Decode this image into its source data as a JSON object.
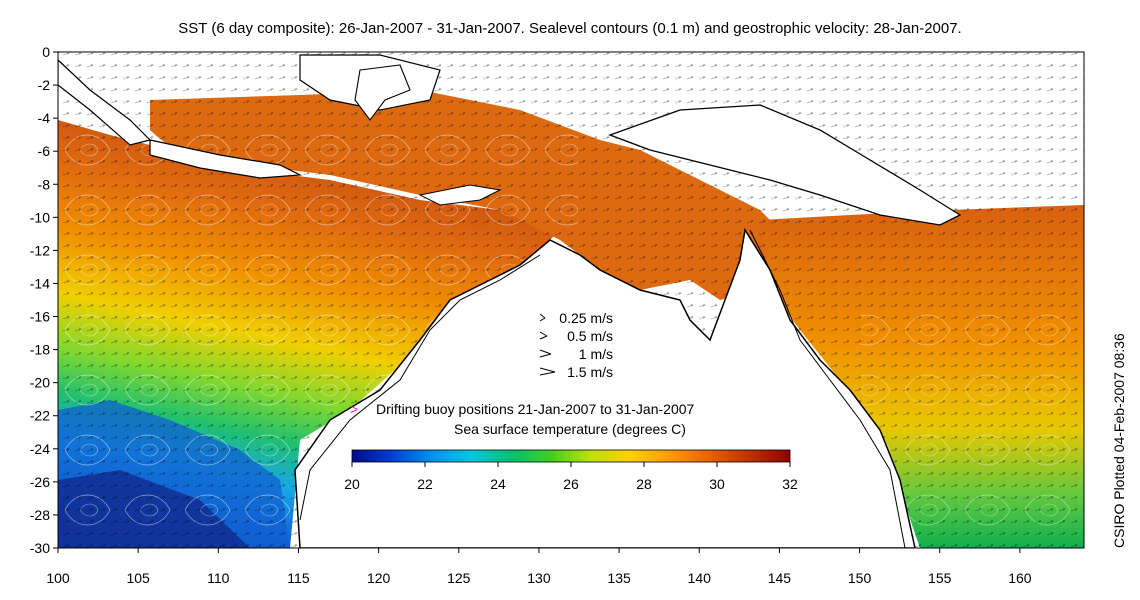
{
  "title": "SST (6 day composite): 26-Jan-2007 - 31-Jan-2007. Sealevel contours (0.1 m) and geostrophic velocity: 28-Jan-2007.",
  "credit": "CSIRO Plotted 04-Feb-2007 08:36",
  "lon_ticks": [
    "100",
    "105",
    "110",
    "115",
    "120",
    "125",
    "130",
    "135",
    "140",
    "145",
    "150",
    "155",
    "160"
  ],
  "lat_ticks": [
    "0",
    "-2",
    "-4",
    "-6",
    "-8",
    "-10",
    "-12",
    "-14",
    "-16",
    "-18",
    "-20",
    "-22",
    "-24",
    "-26",
    "-28",
    "-30"
  ],
  "extent": {
    "lon_min": 100,
    "lon_max": 164,
    "lat_min": -30,
    "lat_max": 0
  },
  "velocity_scale": [
    {
      "label": "0.25 m/s",
      "speed": 0.25
    },
    {
      "label": "0.5 m/s",
      "speed": 0.5
    },
    {
      "label": "1 m/s",
      "speed": 1
    },
    {
      "label": "1.5 m/s",
      "speed": 1.5
    }
  ],
  "buoy_legend": {
    "symbol": ">",
    "label": "Drifting buoy positions 21-Jan-2007 to 31-Jan-2007",
    "color": "#e020e0"
  },
  "colorbar": {
    "label": "Sea surface temperature (degrees C)",
    "min": 20,
    "max": 32,
    "ticks": [
      "20",
      "22",
      "24",
      "26",
      "28",
      "30",
      "32"
    ],
    "colors": [
      "#000a8a",
      "#0040d0",
      "#0090f0",
      "#00c8e0",
      "#00c070",
      "#40d020",
      "#c0e000",
      "#ffd000",
      "#ff9800",
      "#e86000",
      "#c03000",
      "#900000"
    ]
  }
}
